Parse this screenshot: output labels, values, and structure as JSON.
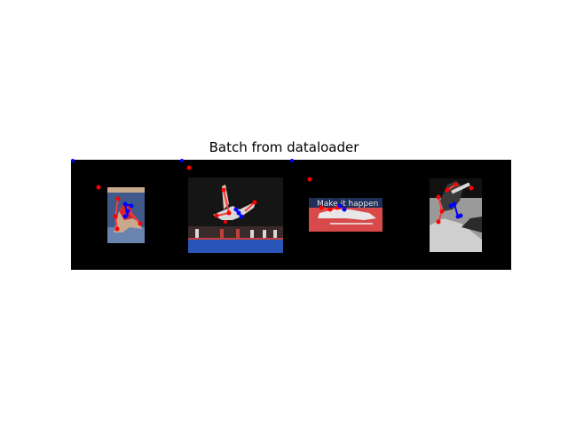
{
  "figure": {
    "title": "Batch from dataloader"
  },
  "batch": {
    "count": 4,
    "tiles": [
      {
        "scene": "seated athlete on red and blue mat",
        "photo_colors": [
          "#3f5a8a",
          "#c8a98e",
          "#d42a2a"
        ]
      },
      {
        "scene": "gymnast flipping in arena with dark curtain and blue floor",
        "photo_colors": [
          "#151515",
          "#2a55b8",
          "#d8d8d8"
        ]
      },
      {
        "scene": "athlete lying on red track",
        "photo_text": "Make it happen",
        "photo_colors": [
          "#1f2f5a",
          "#d84a4a",
          "#e8e8e8"
        ]
      },
      {
        "scene": "grayscale skateboarder jumping",
        "photo_colors": [
          "#111111",
          "#9a9a9a",
          "#d8d8d8"
        ]
      }
    ]
  },
  "keypoint_colors": {
    "left": "#ff0000",
    "right": "#0000ff",
    "limb": "#ff3a3a"
  }
}
